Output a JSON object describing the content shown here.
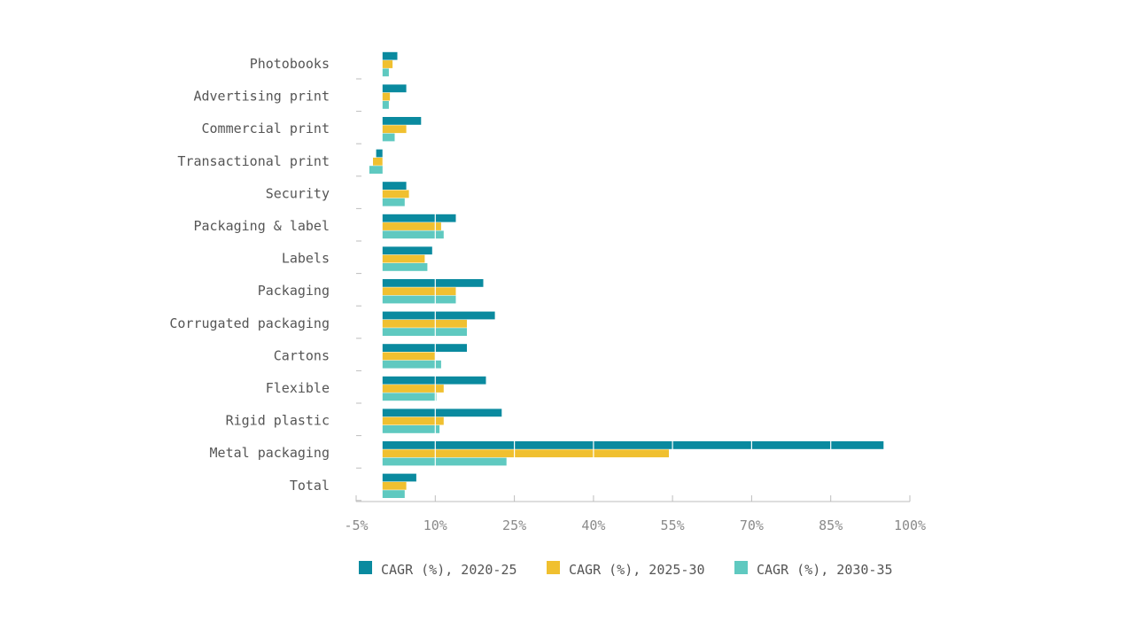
{
  "chart_data": {
    "type": "bar",
    "orientation": "horizontal",
    "categories": [
      "Photobooks",
      "Advertising print",
      "Commercial print",
      "Transactional print",
      "Security",
      "Packaging & label",
      "Labels",
      "Packaging",
      "Corrugated packaging",
      "Cartons",
      "Flexible",
      "Rigid plastic",
      "Metal packaging",
      "Total"
    ],
    "series": [
      {
        "name": "CAGR (%), 2020-25",
        "color": "#0a8a9f",
        "values": [
          2.8,
          4.5,
          7.3,
          -1.2,
          4.5,
          13.9,
          9.4,
          19.1,
          21.3,
          16.0,
          19.6,
          22.6,
          95.0,
          6.4
        ]
      },
      {
        "name": "CAGR (%), 2025-30",
        "color": "#f0c030",
        "values": [
          1.9,
          1.4,
          4.5,
          -1.8,
          5.0,
          11.1,
          8.0,
          13.9,
          16.0,
          10.0,
          11.6,
          11.6,
          54.3,
          4.5
        ]
      },
      {
        "name": "CAGR (%), 2030-35",
        "color": "#5fc9c0",
        "values": [
          1.2,
          1.2,
          2.3,
          -2.5,
          4.2,
          11.6,
          8.5,
          13.9,
          16.0,
          11.1,
          10.2,
          10.8,
          23.5,
          4.2
        ]
      }
    ],
    "xticks": [
      "-5%",
      "10%",
      "25%",
      "40%",
      "55%",
      "70%",
      "85%",
      "100%"
    ],
    "xlim": [
      -5,
      100
    ],
    "grid": true,
    "legend_position": "bottom"
  }
}
